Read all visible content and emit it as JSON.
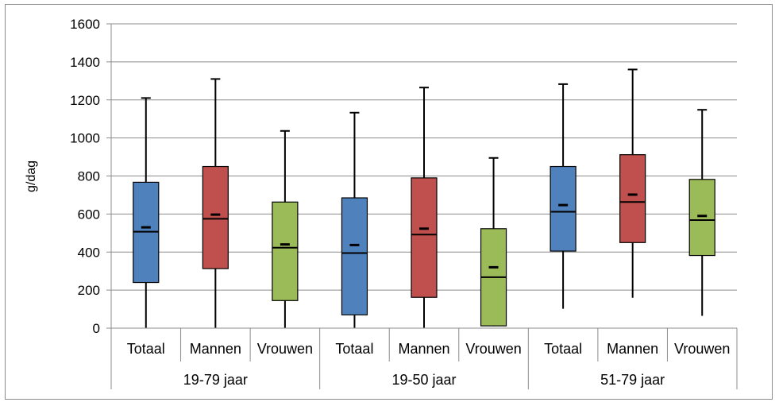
{
  "chart_data": {
    "type": "boxplot",
    "ylabel": "g/dag",
    "ylim": [
      0,
      1600
    ],
    "yticks": [
      0,
      200,
      400,
      600,
      800,
      1000,
      1200,
      1400,
      1600
    ],
    "grid": true,
    "groups": [
      {
        "label": "19-79 jaar",
        "boxes": [
          {
            "label": "Totaal",
            "color": "#4f81bd",
            "min": 0,
            "q1": 240,
            "median": 507,
            "q3": 767,
            "max": 1210,
            "mean": 530
          },
          {
            "label": "Mannen",
            "color": "#c0504d",
            "min": 0,
            "q1": 313,
            "median": 575,
            "q3": 850,
            "max": 1310,
            "mean": 597
          },
          {
            "label": "Vrouwen",
            "color": "#9bbb59",
            "min": 0,
            "q1": 145,
            "median": 423,
            "q3": 663,
            "max": 1037,
            "mean": 440
          }
        ]
      },
      {
        "label": "19-50 jaar",
        "boxes": [
          {
            "label": "Totaal",
            "color": "#4f81bd",
            "min": 0,
            "q1": 70,
            "median": 395,
            "q3": 685,
            "max": 1133,
            "mean": 437
          },
          {
            "label": "Mannen",
            "color": "#c0504d",
            "min": 0,
            "q1": 162,
            "median": 492,
            "q3": 790,
            "max": 1265,
            "mean": 523
          },
          {
            "label": "Vrouwen",
            "color": "#9bbb59",
            "min": 10,
            "q1": 12,
            "median": 268,
            "q3": 523,
            "max": 895,
            "mean": 320
          }
        ]
      },
      {
        "label": "51-79 jaar",
        "boxes": [
          {
            "label": "Totaal",
            "color": "#4f81bd",
            "min": 102,
            "q1": 405,
            "median": 612,
            "q3": 850,
            "max": 1283,
            "mean": 647
          },
          {
            "label": "Mannen",
            "color": "#c0504d",
            "min": 160,
            "q1": 450,
            "median": 663,
            "q3": 912,
            "max": 1360,
            "mean": 702
          },
          {
            "label": "Vrouwen",
            "color": "#9bbb59",
            "min": 65,
            "q1": 382,
            "median": 568,
            "q3": 782,
            "max": 1148,
            "mean": 590
          }
        ]
      }
    ]
  }
}
